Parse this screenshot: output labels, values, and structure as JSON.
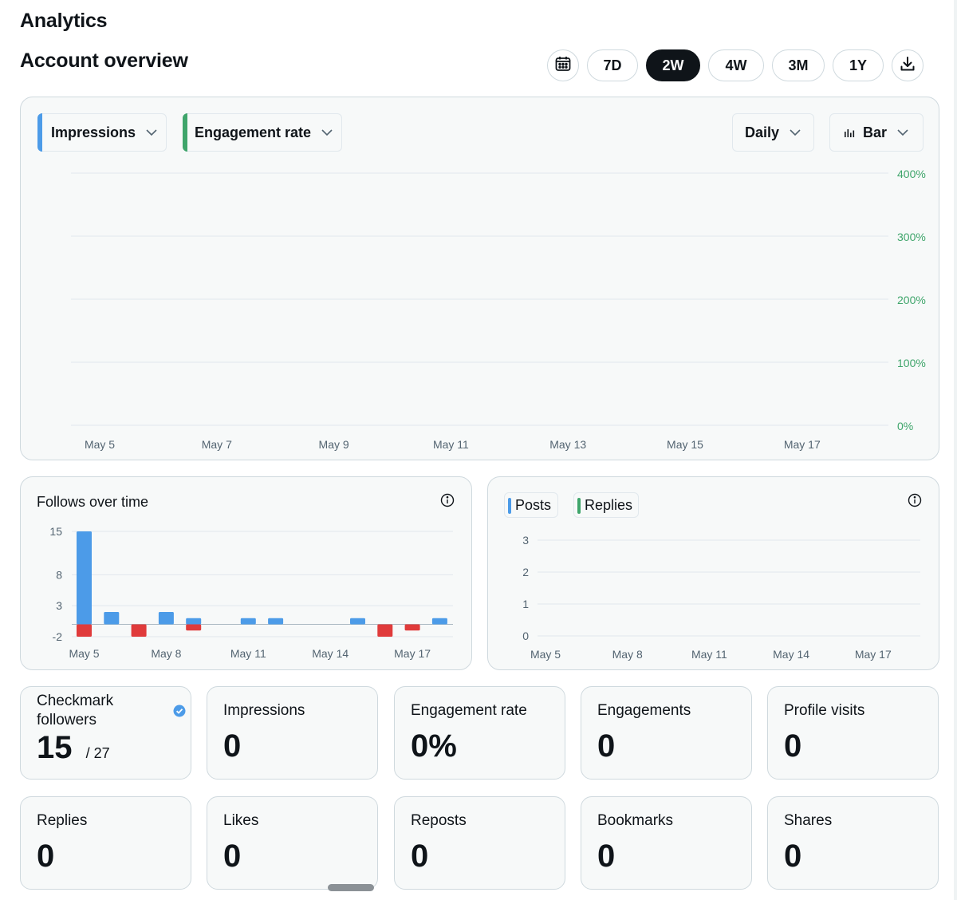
{
  "page": {
    "title": "Analytics",
    "section_title": "Account overview"
  },
  "range": {
    "calendar_icon": "calendar-icon",
    "options": [
      "7D",
      "2W",
      "4W",
      "3M",
      "1Y"
    ],
    "selected": "2W",
    "download_icon": "download-icon"
  },
  "main_chart": {
    "metric_primary": "Impressions",
    "metric_secondary": "Engagement rate",
    "interval": "Daily",
    "chart_type_label": "Bar",
    "colors": {
      "primary": "#4c9be8",
      "secondary": "#3fa56b"
    }
  },
  "follows": {
    "title": "Follows over time",
    "info_icon": "info-icon"
  },
  "posts_replies": {
    "legend": [
      "Posts",
      "Replies"
    ],
    "legend_colors": [
      "#4c9be8",
      "#3fa56b"
    ],
    "info_icon": "info-icon"
  },
  "stats": [
    {
      "label": "Checkmark followers",
      "value": "15",
      "suffix": "/ 27",
      "verified": true
    },
    {
      "label": "Impressions",
      "value": "0"
    },
    {
      "label": "Engagement rate",
      "value": "0%"
    },
    {
      "label": "Engagements",
      "value": "0"
    },
    {
      "label": "Profile visits",
      "value": "0"
    },
    {
      "label": "Replies",
      "value": "0"
    },
    {
      "label": "Likes",
      "value": "0"
    },
    {
      "label": "Reposts",
      "value": "0"
    },
    {
      "label": "Bookmarks",
      "value": "0"
    },
    {
      "label": "Shares",
      "value": "0"
    }
  ],
  "chart_data": [
    {
      "type": "bar",
      "series": [
        {
          "name": "Impressions",
          "values": []
        },
        {
          "name": "Engagement rate",
          "values": []
        }
      ],
      "x_tick_labels": [
        "May 5",
        "May 7",
        "May 9",
        "May 11",
        "May 13",
        "May 15",
        "May 17"
      ],
      "y_right_tick_labels": [
        "400%",
        "300%",
        "200%",
        "100%",
        "0%"
      ],
      "y_right_lim": [
        0,
        400
      ],
      "grid": true
    },
    {
      "type": "bar",
      "title": "Follows over time",
      "categories": [
        "May 5",
        "May 6",
        "May 7",
        "May 8",
        "May 9",
        "May 10",
        "May 11",
        "May 12",
        "May 13",
        "May 14",
        "May 15",
        "May 16",
        "May 17",
        "May 18"
      ],
      "series": [
        {
          "color": "#4c9be8",
          "values": [
            15,
            2,
            0,
            2,
            1,
            0,
            1,
            1,
            0,
            0,
            1,
            0,
            0,
            1
          ]
        },
        {
          "color": "#e03b3b",
          "values": [
            -2,
            0,
            -2,
            0,
            -1,
            0,
            0,
            0,
            0,
            0,
            0,
            -2,
            -1,
            0
          ]
        }
      ],
      "x_tick_labels": [
        "May 5",
        "May 8",
        "May 11",
        "May 14",
        "May 17"
      ],
      "y_tick_labels": [
        "15",
        "8",
        "3",
        "-2"
      ],
      "ylim": [
        -2,
        15
      ],
      "grid": true
    },
    {
      "type": "bar",
      "series": [
        {
          "name": "Posts",
          "values": []
        },
        {
          "name": "Replies",
          "values": []
        }
      ],
      "x_tick_labels": [
        "May 5",
        "May 8",
        "May 11",
        "May 14",
        "May 17"
      ],
      "y_tick_labels": [
        "3",
        "2",
        "1",
        "0"
      ],
      "ylim": [
        0,
        3
      ],
      "grid": true
    }
  ]
}
